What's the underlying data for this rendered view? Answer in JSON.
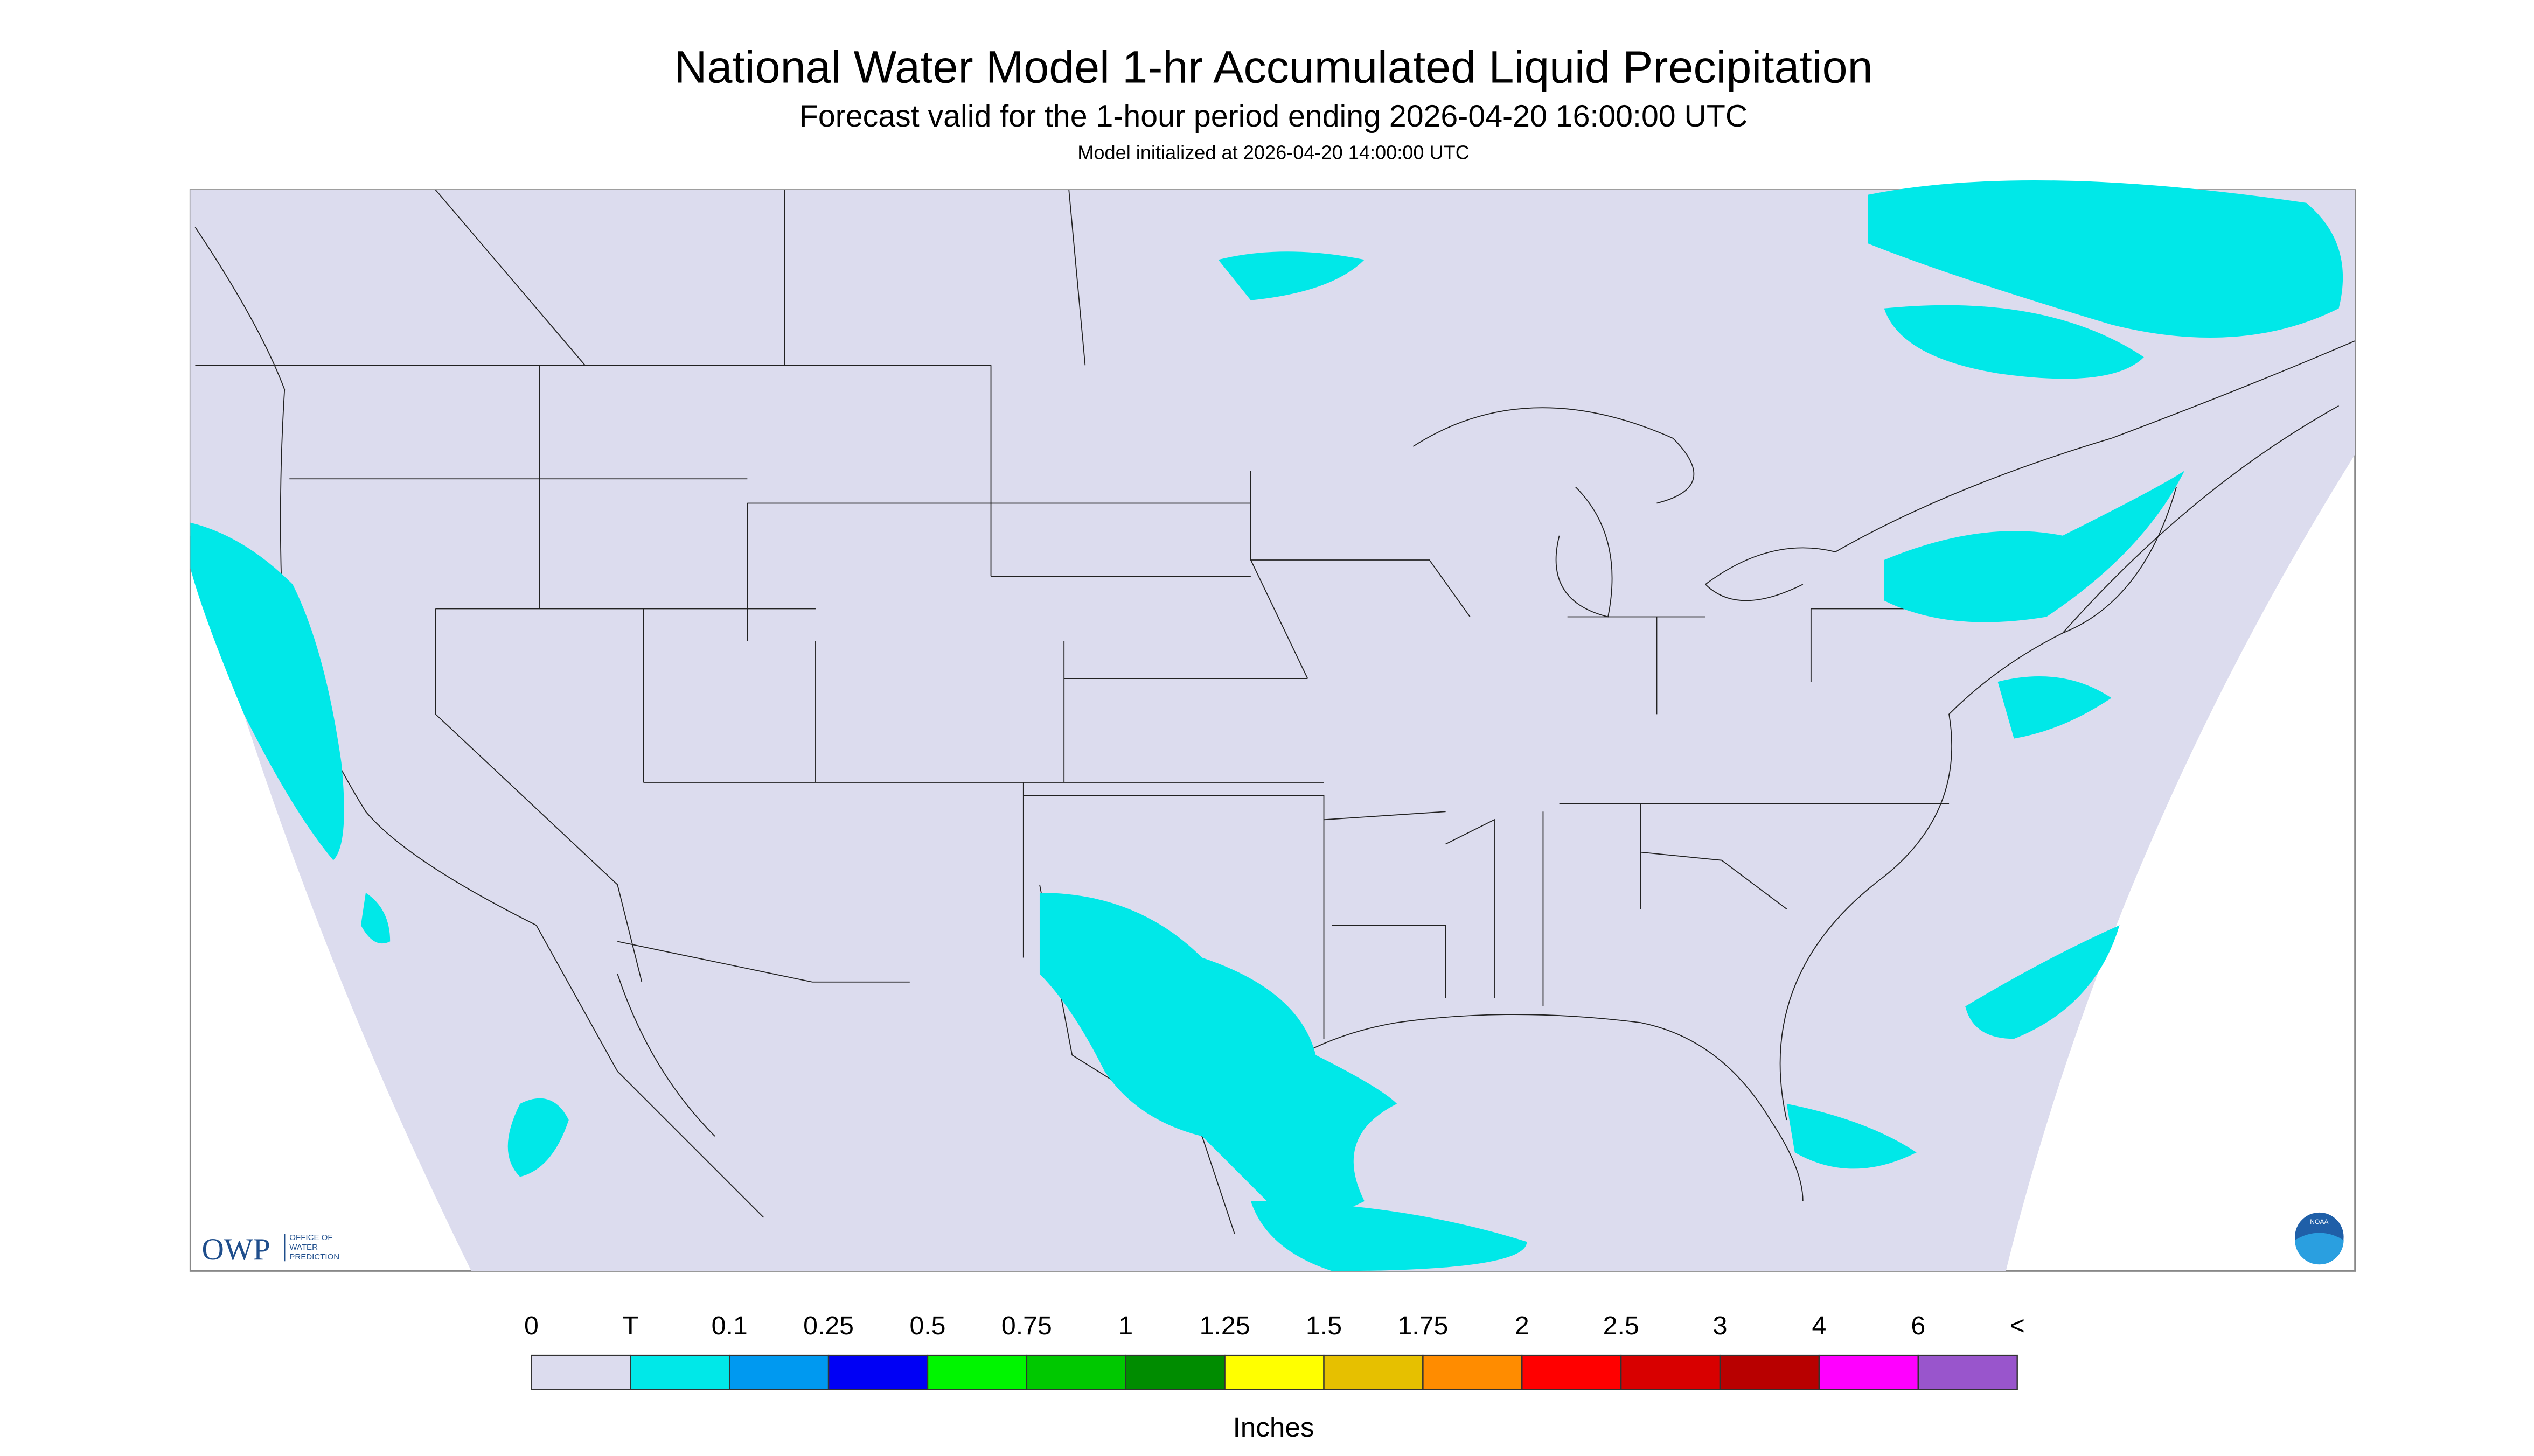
{
  "header": {
    "title": "National Water Model 1-hr Accumulated Liquid Precipitation",
    "subtitle": "Forecast valid for the 1-hour period ending 2026-04-20 16:00:00 UTC",
    "initialized": "Model initialized at 2026-04-20 14:00:00 UTC"
  },
  "legend": {
    "labels": [
      "0",
      "T",
      "0.1",
      "0.25",
      "0.5",
      "0.75",
      "1",
      "1.25",
      "1.5",
      "1.75",
      "2",
      "2.5",
      "3",
      "4",
      "6",
      "<"
    ],
    "colors": [
      "#dcdcee",
      "#00e8e8",
      "#0099f0",
      "#0000f5",
      "#00f500",
      "#00c800",
      "#008c00",
      "#ffff00",
      "#e6c000",
      "#ff8c00",
      "#ff0000",
      "#d80000",
      "#b80000",
      "#ff00ff",
      "#9955cc"
    ],
    "unit": "Inches"
  },
  "logos": {
    "owp": "OWP",
    "owp_lines": [
      "OFFICE OF",
      "WATER",
      "PREDICTION"
    ],
    "noaa": "NOAA"
  }
}
